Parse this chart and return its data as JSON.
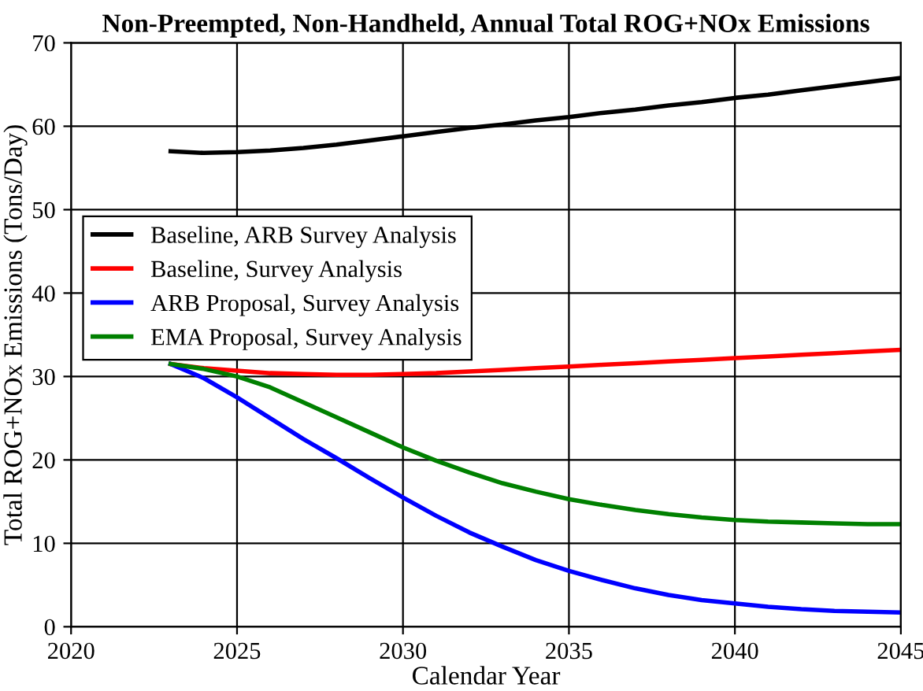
{
  "chart_data": {
    "type": "line",
    "title": "Non-Preempted, Non-Handheld, Annual Total ROG+NOx Emissions",
    "xlabel": "Calendar Year",
    "ylabel": "Total ROG+NOx Emissions (Tons/Day)",
    "x": [
      2023,
      2024,
      2025,
      2026,
      2027,
      2028,
      2029,
      2030,
      2031,
      2032,
      2033,
      2034,
      2035,
      2036,
      2037,
      2038,
      2039,
      2040,
      2041,
      2042,
      2043,
      2044,
      2045
    ],
    "series": [
      {
        "name": "Baseline, ARB Survey Analysis",
        "color": "#000000",
        "values": [
          57.0,
          56.8,
          56.9,
          57.1,
          57.4,
          57.8,
          58.3,
          58.8,
          59.3,
          59.8,
          60.2,
          60.7,
          61.1,
          61.6,
          62.0,
          62.5,
          62.9,
          63.4,
          63.8,
          64.3,
          64.8,
          65.3,
          65.8
        ]
      },
      {
        "name": "Baseline, Survey Analysis",
        "color": "#ff0000",
        "values": [
          31.5,
          31.0,
          30.7,
          30.4,
          30.3,
          30.2,
          30.2,
          30.3,
          30.4,
          30.6,
          30.8,
          31.0,
          31.2,
          31.4,
          31.6,
          31.8,
          32.0,
          32.2,
          32.4,
          32.6,
          32.8,
          33.0,
          33.2
        ]
      },
      {
        "name": "ARB Proposal, Survey Analysis",
        "color": "#0000ff",
        "values": [
          31.5,
          29.8,
          27.5,
          25.0,
          22.5,
          20.2,
          17.8,
          15.5,
          13.3,
          11.3,
          9.6,
          8.0,
          6.7,
          5.6,
          4.6,
          3.8,
          3.2,
          2.8,
          2.4,
          2.1,
          1.9,
          1.8,
          1.7
        ]
      },
      {
        "name": "EMA Proposal, Survey Analysis",
        "color": "#008000",
        "values": [
          31.5,
          30.9,
          30.0,
          28.7,
          26.9,
          25.1,
          23.3,
          21.5,
          19.9,
          18.5,
          17.2,
          16.2,
          15.3,
          14.6,
          14.0,
          13.5,
          13.1,
          12.8,
          12.6,
          12.5,
          12.4,
          12.3,
          12.3
        ]
      }
    ],
    "xlim": [
      2020,
      2045
    ],
    "xticks": [
      2020,
      2025,
      2030,
      2035,
      2040,
      2045
    ],
    "ylim": [
      0,
      70
    ],
    "yticks": [
      0,
      10,
      20,
      30,
      40,
      50,
      60,
      70
    ],
    "grid": true,
    "legend": "left",
    "marker": "none",
    "line_style": "solid"
  }
}
